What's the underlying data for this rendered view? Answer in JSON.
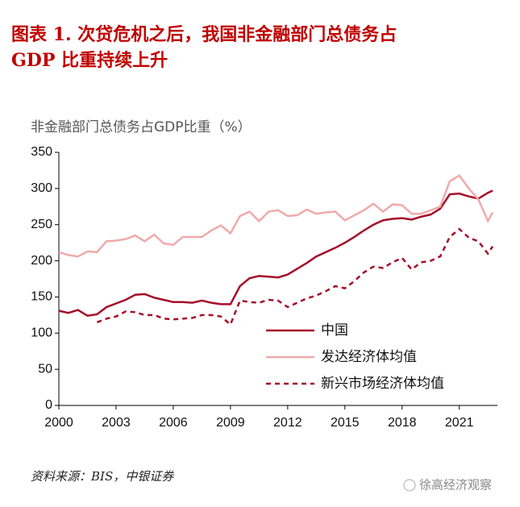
{
  "chart_data": {
    "type": "line",
    "title": [
      "图表 1. 次贷危机之后，我国非金融部门总债务占",
      "GDP 比重持续上升"
    ],
    "y_label": "非金融部门总债务占GDP比重（%）",
    "source": "资料来源：BIS，中银证券",
    "watermark": "徐高经济观察",
    "x": [
      2000,
      2000.5,
      2001,
      2001.5,
      2002,
      2002.5,
      2003,
      2003.5,
      2004,
      2004.5,
      2005,
      2005.5,
      2006,
      2006.5,
      2007,
      2007.5,
      2008,
      2008.5,
      2009,
      2009.5,
      2010,
      2010.5,
      2011,
      2011.5,
      2012,
      2012.5,
      2013,
      2013.5,
      2014,
      2014.5,
      2015,
      2015.5,
      2016,
      2016.5,
      2017,
      2017.5,
      2018,
      2018.5,
      2019,
      2019.5,
      2020,
      2020.5,
      2021,
      2021.5,
      2022,
      2022.5,
      2022.75
    ],
    "series": [
      {
        "name": "中国",
        "color": "#a50d2a",
        "style": "solid",
        "values": [
          131,
          128,
          132,
          124,
          126,
          136,
          141,
          146,
          153,
          154,
          149,
          146,
          143,
          143,
          142,
          145,
          142,
          140,
          140,
          165,
          176,
          179,
          178,
          177,
          181,
          189,
          197,
          206,
          212,
          218,
          225,
          233,
          242,
          250,
          256,
          258,
          259,
          257,
          261,
          264,
          272,
          292,
          293,
          289,
          286,
          294,
          297
        ]
      },
      {
        "name": "发达经济体均值",
        "color": "#f0aaaa",
        "style": "solid",
        "values": [
          212,
          208,
          206,
          213,
          212,
          227,
          228,
          230,
          235,
          227,
          236,
          224,
          222,
          233,
          233,
          233,
          242,
          249,
          238,
          262,
          268,
          255,
          268,
          270,
          262,
          263,
          271,
          265,
          267,
          268,
          256,
          263,
          270,
          279,
          268,
          278,
          277,
          265,
          265,
          270,
          275,
          310,
          318,
          300,
          285,
          255,
          267
        ]
      },
      {
        "name": "新兴市场经济体均值",
        "color": "#a50d2a",
        "style": "dashed",
        "values": [
          null,
          null,
          null,
          null,
          115,
          120,
          123,
          130,
          129,
          125,
          125,
          120,
          119,
          120,
          121,
          125,
          125,
          123,
          112,
          145,
          143,
          142,
          146,
          145,
          136,
          142,
          148,
          152,
          158,
          165,
          162,
          172,
          184,
          192,
          190,
          198,
          204,
          188,
          198,
          200,
          206,
          233,
          244,
          232,
          227,
          210,
          220
        ]
      }
    ],
    "xlim": [
      2000,
      2023
    ],
    "xticks": [
      2000,
      2003,
      2006,
      2009,
      2012,
      2015,
      2018,
      2021
    ],
    "ylim": [
      0,
      350
    ],
    "yticks": [
      0,
      50,
      100,
      150,
      200,
      250,
      300,
      350
    ],
    "grid": false
  }
}
